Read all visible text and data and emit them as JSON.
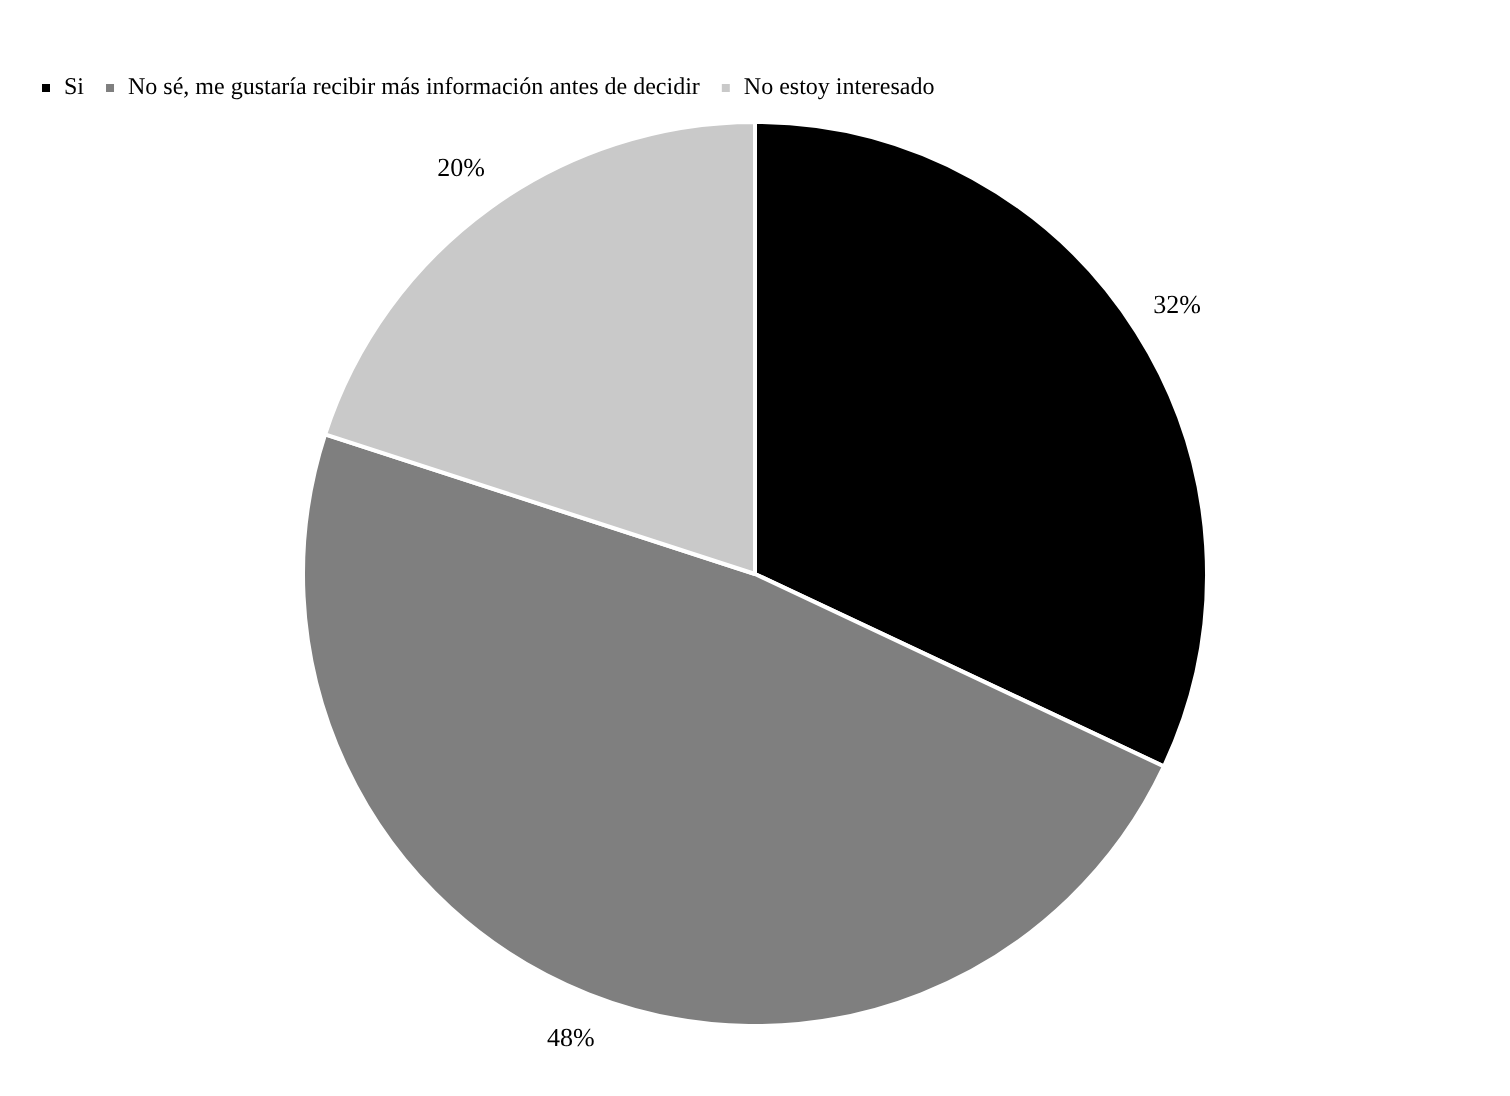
{
  "chart_data": {
    "type": "pie",
    "categories": [
      "Si",
      "No sé, me gustaría recibir más información antes de decidir",
      "No estoy interesado"
    ],
    "values": [
      32,
      48,
      20
    ],
    "colors": [
      "#000000",
      "#7f7f7f",
      "#c9c9c9"
    ],
    "value_labels": [
      "32%",
      "48%",
      "20%"
    ],
    "legend": "top left"
  }
}
